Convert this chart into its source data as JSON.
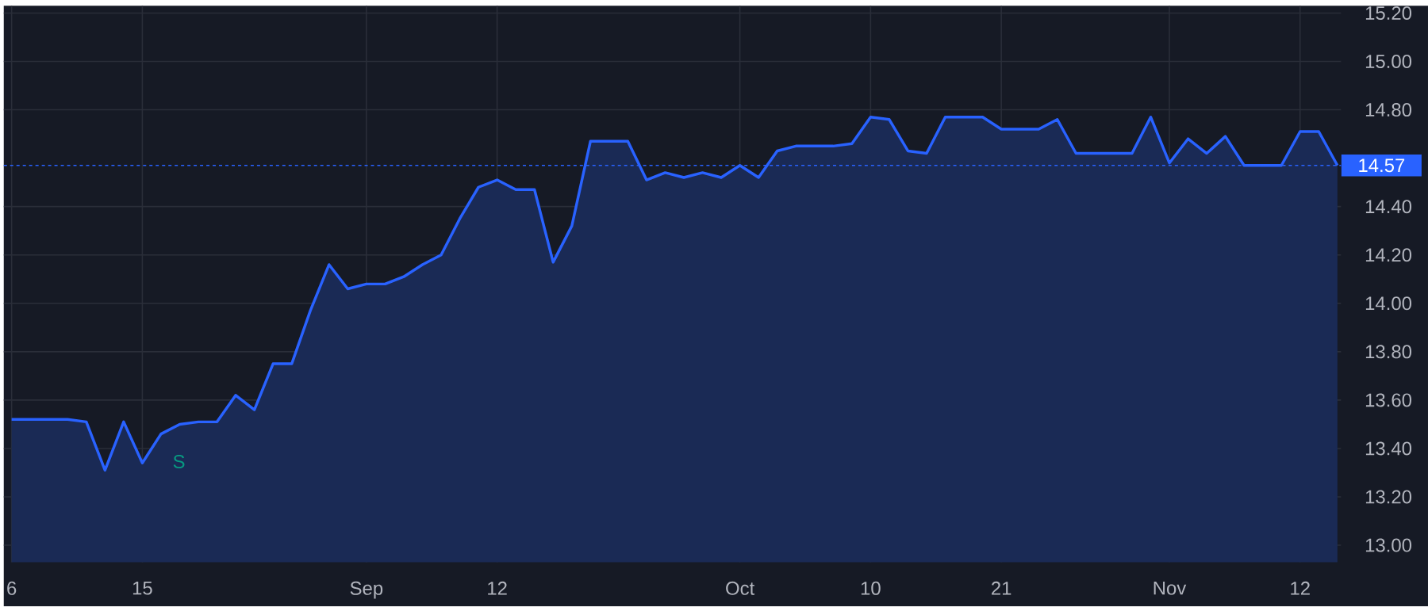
{
  "chart_data": {
    "type": "area",
    "categories": [
      "6",
      null,
      null,
      null,
      null,
      null,
      null,
      "15",
      null,
      null,
      null,
      null,
      null,
      null,
      null,
      null,
      null,
      null,
      null,
      "Sep",
      null,
      null,
      null,
      null,
      null,
      null,
      "12",
      null,
      null,
      null,
      null,
      null,
      null,
      null,
      null,
      null,
      null,
      null,
      null,
      "Oct",
      null,
      null,
      null,
      null,
      null,
      null,
      "10",
      null,
      null,
      null,
      null,
      null,
      null,
      "21",
      null,
      null,
      null,
      null,
      null,
      null,
      null,
      null,
      "Nov",
      null,
      null,
      null,
      null,
      null,
      null,
      "12",
      null,
      null
    ],
    "series": [
      {
        "color": "#2962ff",
        "values": [
          13.52,
          13.52,
          13.52,
          13.52,
          13.51,
          13.31,
          13.51,
          13.34,
          13.46,
          13.5,
          13.51,
          13.51,
          13.62,
          13.56,
          13.75,
          13.75,
          13.97,
          14.16,
          14.06,
          14.08,
          14.08,
          14.11,
          14.16,
          14.2,
          14.35,
          14.48,
          14.51,
          14.47,
          14.47,
          14.17,
          14.32,
          14.67,
          14.67,
          14.67,
          14.51,
          14.54,
          14.52,
          14.54,
          14.52,
          14.57,
          14.52,
          14.63,
          14.65,
          14.65,
          14.65,
          14.66,
          14.77,
          14.76,
          14.63,
          14.62,
          14.77,
          14.77,
          14.77,
          14.72,
          14.72,
          14.72,
          14.76,
          14.62,
          14.62,
          14.62,
          14.62,
          14.77,
          14.58,
          14.68,
          14.62,
          14.69,
          14.57,
          14.57,
          14.57,
          14.71,
          14.71,
          14.57
        ]
      }
    ],
    "ylim": [
      12.93,
      15.23
    ],
    "yticks": [
      {
        "value": 13,
        "label": "13.00"
      },
      {
        "value": 13.2,
        "label": "13.20"
      },
      {
        "value": 13.4,
        "label": "13.40"
      },
      {
        "value": 13.6,
        "label": "13.60"
      },
      {
        "value": 13.8,
        "label": "13.80"
      },
      {
        "value": 14,
        "label": "14.00"
      },
      {
        "value": 14.2,
        "label": "14.20"
      },
      {
        "value": 14.4,
        "label": "14.40"
      },
      {
        "value": 14.8,
        "label": "14.80"
      },
      {
        "value": 15,
        "label": "15.00"
      },
      {
        "value": 15.2,
        "label": "15.20"
      }
    ],
    "ref_lines": [
      {
        "axis": "y",
        "value": 14.57,
        "label": "14.57",
        "color": "#2962ff",
        "line_style": "dotted"
      }
    ],
    "annotations": [
      "S"
    ],
    "grid": true
  }
}
